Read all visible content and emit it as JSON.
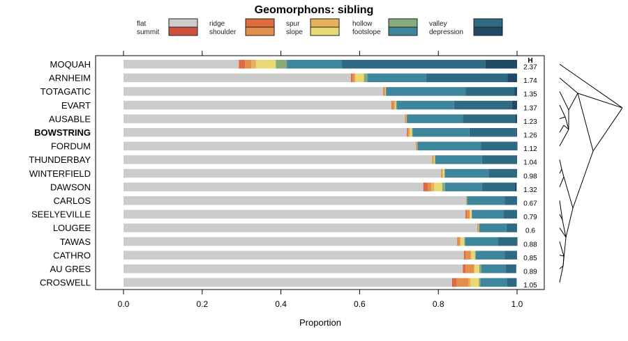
{
  "chart_data": {
    "type": "bar",
    "orientation": "horizontal-stacked",
    "title": "Geomorphons: sibling",
    "xlabel": "Proportion",
    "ylabel": "",
    "xlim": [
      0,
      1
    ],
    "x_ticks": [
      "0.0",
      "0.2",
      "0.4",
      "0.6",
      "0.8",
      "1.0"
    ],
    "x_tick_values": [
      0,
      0.2,
      0.4,
      0.6,
      0.8,
      1.0
    ],
    "grid": false,
    "legend_placement": "top",
    "h_header": "H",
    "highlight": "BOWSTRING",
    "legend": [
      {
        "name": "flat",
        "color": "#cccccc"
      },
      {
        "name": "summit",
        "color": "#d2513e"
      },
      {
        "name": "ridge",
        "color": "#dc6b3e"
      },
      {
        "name": "shoulder",
        "color": "#e38f4b"
      },
      {
        "name": "spur",
        "color": "#e7b05c"
      },
      {
        "name": "slope",
        "color": "#e9d874"
      },
      {
        "name": "hollow",
        "color": "#86ab78"
      },
      {
        "name": "footslope",
        "color": "#3d869b"
      },
      {
        "name": "valley",
        "color": "#2e6a82"
      },
      {
        "name": "depression",
        "color": "#214966"
      }
    ],
    "categories": [
      "MOQUAH",
      "ARNHEIM",
      "TOTAGATIC",
      "EVART",
      "AUSABLE",
      "BOWSTRING",
      "FORDUM",
      "THUNDERBAY",
      "WINTERFIELD",
      "DAWSON",
      "CARLOS",
      "SEELYEVILLE",
      "LOUGEE",
      "TAWAS",
      "CATHRO",
      "AU GRES",
      "CROSWELL"
    ],
    "H": [
      "2.37",
      "1.74",
      "1.35",
      "1.37",
      "1.23",
      "1.26",
      "1.12",
      "1.04",
      "0.98",
      "1.32",
      "0.67",
      "0.79",
      "0.6",
      "0.88",
      "0.85",
      "0.89",
      "1.05"
    ],
    "series": [
      {
        "name": "flat",
        "values": [
          0.293,
          0.578,
          0.66,
          0.681,
          0.715,
          0.72,
          0.743,
          0.784,
          0.807,
          0.762,
          0.871,
          0.869,
          0.899,
          0.848,
          0.865,
          0.862,
          0.835
        ]
      },
      {
        "name": "summit",
        "values": [
          0.0,
          0.0,
          0.0,
          0.0,
          0.0,
          0.0,
          0.0,
          0.0,
          0.0,
          0.002,
          0.0,
          0.0,
          0.0,
          0.0,
          0.0,
          0.001,
          0.003
        ]
      },
      {
        "name": "ridge",
        "values": [
          0.016,
          0.004,
          0.002,
          0.003,
          0.0,
          0.003,
          0.0,
          0.0,
          0.0,
          0.009,
          0.0,
          0.004,
          0.0,
          0.002,
          0.005,
          0.006,
          0.009
        ]
      },
      {
        "name": "shoulder",
        "values": [
          0.016,
          0.005,
          0.002,
          0.004,
          0.003,
          0.002,
          0.003,
          0.003,
          0.004,
          0.009,
          0.002,
          0.007,
          0.003,
          0.005,
          0.012,
          0.021,
          0.03
        ]
      },
      {
        "name": "spur",
        "values": [
          0.012,
          0.003,
          0.002,
          0.002,
          0.002,
          0.003,
          0.001,
          0.002,
          0.0,
          0.007,
          0.0,
          0.0,
          0.002,
          0.002,
          0.002,
          0.002,
          0.005
        ]
      },
      {
        "name": "slope",
        "values": [
          0.05,
          0.021,
          0.001,
          0.002,
          0.0,
          0.005,
          0.0,
          0.002,
          0.005,
          0.021,
          0.0,
          0.005,
          0.0,
          0.009,
          0.009,
          0.012,
          0.021
        ]
      },
      {
        "name": "hollow",
        "values": [
          0.028,
          0.009,
          0.0,
          0.003,
          0.0,
          0.002,
          0.0,
          0.001,
          0.0,
          0.007,
          0.0,
          0.0,
          0.0,
          0.002,
          0.002,
          0.005,
          0.004
        ]
      },
      {
        "name": "footslope",
        "values": [
          0.14,
          0.149,
          0.202,
          0.145,
          0.142,
          0.144,
          0.161,
          0.119,
          0.112,
          0.094,
          0.096,
          0.08,
          0.069,
          0.083,
          0.074,
          0.062,
          0.067
        ]
      },
      {
        "name": "valley",
        "values": [
          0.365,
          0.207,
          0.124,
          0.147,
          0.133,
          0.119,
          0.092,
          0.088,
          0.071,
          0.083,
          0.032,
          0.035,
          0.027,
          0.049,
          0.032,
          0.027,
          0.025
        ]
      },
      {
        "name": "depression",
        "values": [
          0.08,
          0.025,
          0.007,
          0.014,
          0.005,
          0.005,
          0.001,
          0.001,
          0.001,
          0.005,
          0.0,
          0.0,
          0.0,
          0.001,
          0.0,
          0.0,
          0.0
        ]
      }
    ]
  }
}
